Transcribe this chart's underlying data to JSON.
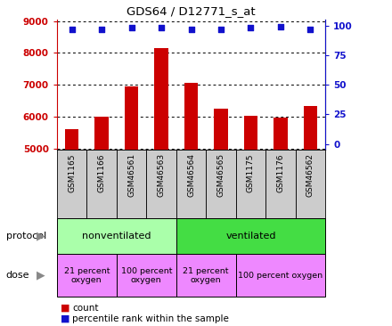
{
  "title": "GDS64 / D12771_s_at",
  "samples": [
    "GSM1165",
    "GSM1166",
    "GSM46561",
    "GSM46563",
    "GSM46564",
    "GSM46565",
    "GSM1175",
    "GSM1176",
    "GSM46562"
  ],
  "counts": [
    5600,
    6000,
    6950,
    8150,
    7050,
    6250,
    6030,
    5970,
    6320
  ],
  "percentiles": [
    97,
    97,
    98,
    98,
    97,
    97,
    98,
    99,
    97
  ],
  "ylim_left": [
    4950,
    9050
  ],
  "ylim_right": [
    -5,
    105
  ],
  "yticks_left": [
    5000,
    6000,
    7000,
    8000,
    9000
  ],
  "yticks_right": [
    0,
    25,
    50,
    75,
    100
  ],
  "bar_color": "#cc0000",
  "dot_color": "#1111cc",
  "protocol_color_nonvent": "#aaffaa",
  "protocol_color_vent": "#44dd44",
  "dose_color": "#ee88ff",
  "grid_color": "#000000",
  "tick_color_left": "#cc0000",
  "tick_color_right": "#1111cc",
  "background_color": "#ffffff",
  "label_area_color": "#cccccc",
  "dose_spans": [
    [
      0,
      1,
      "21 percent\noxygen"
    ],
    [
      2,
      3,
      "100 percent\noxygen"
    ],
    [
      4,
      5,
      "21 percent\noxygen"
    ],
    [
      6,
      8,
      "100 percent oxygen"
    ]
  ],
  "prot_spans": [
    [
      0,
      3,
      "nonventilated"
    ],
    [
      4,
      8,
      "ventilated"
    ]
  ]
}
